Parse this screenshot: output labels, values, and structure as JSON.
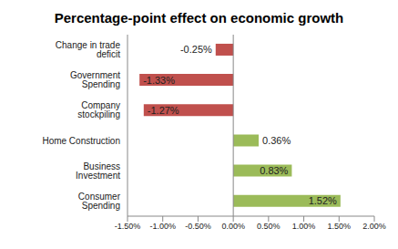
{
  "chart_data": {
    "type": "bar",
    "title": "Percentage-point effect on economic growth",
    "orientation": "horizontal",
    "categories": [
      "Change in trade deficit",
      "Government Spending",
      "Company stockpiling",
      "Home Construction",
      "Business Investment",
      "Consumer Spending"
    ],
    "values": [
      -0.25,
      -1.33,
      -1.27,
      0.36,
      0.83,
      1.52
    ],
    "value_labels": [
      "-0.25%",
      "-1.33%",
      "-1.27%",
      "0.36%",
      "0.83%",
      "1.52%"
    ],
    "colors": [
      "#c0504d",
      "#c0504d",
      "#c0504d",
      "#9bbb59",
      "#9bbb59",
      "#9bbb59"
    ],
    "data_labels": true,
    "grid": false,
    "xlim": [
      -1.5,
      2.0
    ],
    "xticks": [
      {
        "value": -1.5,
        "label": "-1.50%"
      },
      {
        "value": -1.0,
        "label": "-1.00%"
      },
      {
        "value": -0.5,
        "label": "-0.50%"
      },
      {
        "value": 0,
        "label": "0.00%"
      },
      {
        "value": 0.5,
        "label": "0.50%"
      },
      {
        "value": 1.0,
        "label": "1.00%"
      },
      {
        "value": 1.5,
        "label": "1.50%"
      },
      {
        "value": 2.0,
        "label": "2.00%"
      }
    ]
  }
}
